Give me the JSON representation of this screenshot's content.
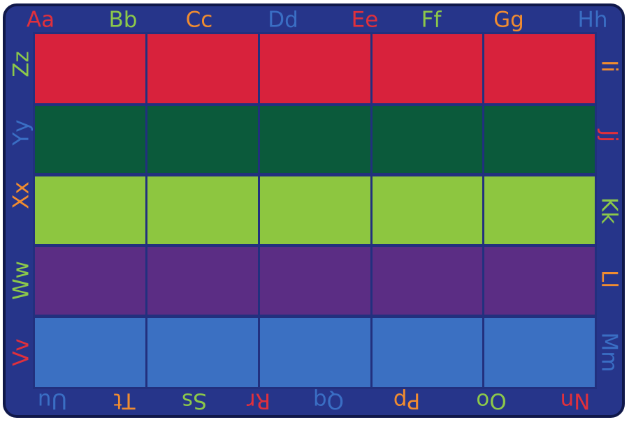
{
  "top_border": [
    "Aa",
    "Bb",
    "Cc",
    "Dd",
    "Ee",
    "Ff",
    "Gg",
    "Hh"
  ],
  "right_border": [
    "Ii",
    "Jj",
    "Kk",
    "Ll",
    "Mm"
  ],
  "bottom_border": [
    "Nn",
    "Oo",
    "Pp",
    "Qq",
    "Rr",
    "Ss",
    "Tt",
    "Uu"
  ],
  "left_border": [
    "Vv",
    "Ww",
    "Xx",
    "Yy",
    "Zz"
  ]
}
